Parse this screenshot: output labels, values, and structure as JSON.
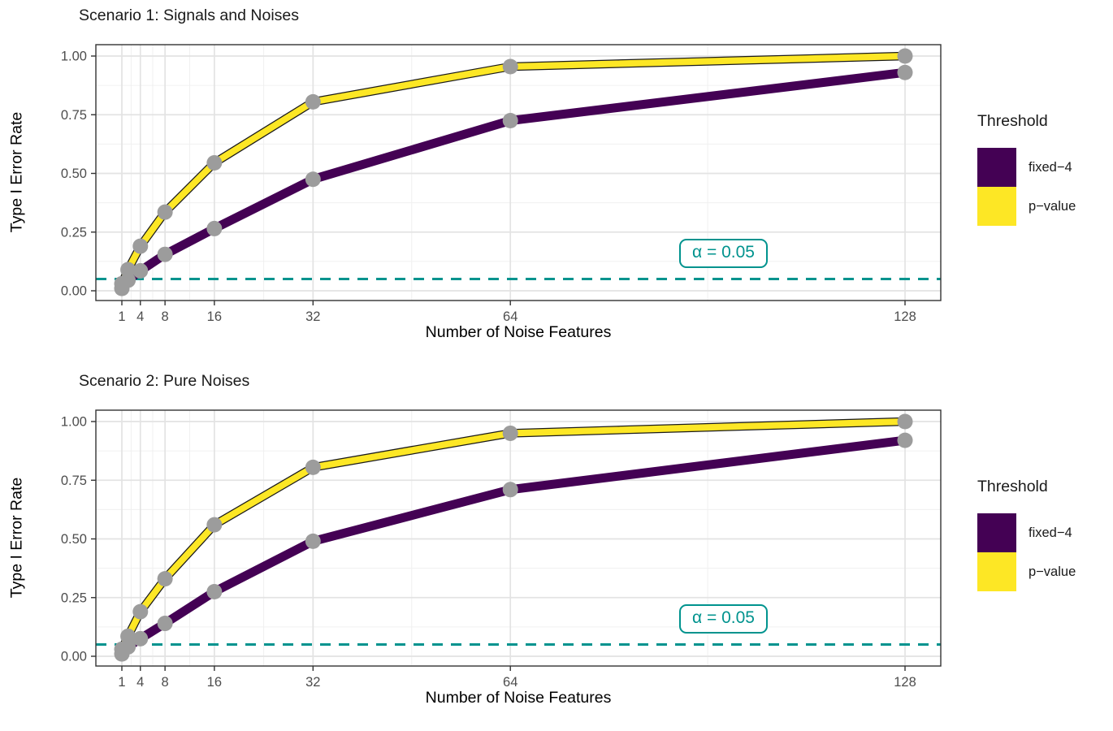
{
  "chart_data": [
    {
      "type": "line",
      "title": "Scenario 1: Signals and Noises",
      "xlabel": "Number of Noise Features",
      "ylabel": "Type I Error Rate",
      "x": [
        1,
        2,
        4,
        8,
        16,
        32,
        64,
        128
      ],
      "x_ticks": [
        1,
        4,
        8,
        16,
        32,
        64,
        128
      ],
      "y_ticks": [
        "0.00",
        "0.25",
        "0.50",
        "0.75",
        "1.00"
      ],
      "y_tick_values": [
        0,
        0.25,
        0.5,
        0.75,
        1
      ],
      "xlim": [
        1,
        128
      ],
      "ylim": [
        0,
        1
      ],
      "grid": "on",
      "point_color": "#9C9C9C",
      "series": [
        {
          "name": "fixed-4",
          "color": "#440154",
          "outlined": false,
          "values": [
            0.01,
            0.045,
            0.085,
            0.155,
            0.265,
            0.475,
            0.725,
            0.93
          ]
        },
        {
          "name": "p-value",
          "color": "#FDE725",
          "outlined": true,
          "values": [
            0.03,
            0.09,
            0.19,
            0.335,
            0.545,
            0.805,
            0.955,
            1.0
          ]
        }
      ],
      "reference_line": {
        "value": 0.05,
        "label": "α = 0.05",
        "color": "#00938E"
      },
      "legend": {
        "title": "Threshold",
        "position": "right",
        "items": [
          {
            "label": "fixed−4",
            "color": "#440154"
          },
          {
            "label": "p−value",
            "color": "#FDE725"
          }
        ]
      }
    },
    {
      "type": "line",
      "title": "Scenario 2: Pure Noises",
      "xlabel": "Number of Noise Features",
      "ylabel": "Type I Error Rate",
      "x": [
        1,
        2,
        4,
        8,
        16,
        32,
        64,
        128
      ],
      "x_ticks": [
        1,
        4,
        8,
        16,
        32,
        64,
        128
      ],
      "y_ticks": [
        "0.00",
        "0.25",
        "0.50",
        "0.75",
        "1.00"
      ],
      "y_tick_values": [
        0,
        0.25,
        0.5,
        0.75,
        1
      ],
      "xlim": [
        1,
        128
      ],
      "ylim": [
        0,
        1
      ],
      "grid": "on",
      "point_color": "#9C9C9C",
      "series": [
        {
          "name": "fixed-4",
          "color": "#440154",
          "outlined": false,
          "values": [
            0.01,
            0.04,
            0.075,
            0.14,
            0.275,
            0.49,
            0.71,
            0.92
          ]
        },
        {
          "name": "p-value",
          "color": "#FDE725",
          "outlined": true,
          "values": [
            0.03,
            0.085,
            0.19,
            0.33,
            0.56,
            0.805,
            0.95,
            1.0
          ]
        }
      ],
      "reference_line": {
        "value": 0.05,
        "label": "α = 0.05",
        "color": "#00938E"
      },
      "legend": {
        "title": "Threshold",
        "position": "right",
        "items": [
          {
            "label": "fixed−4",
            "color": "#440154"
          },
          {
            "label": "p−value",
            "color": "#FDE725"
          }
        ]
      }
    }
  ],
  "style": {
    "panel_border_color": "#333333",
    "major_grid_color": "#E3E3E3",
    "minor_grid_color": "#F0F0F0",
    "tick_color": "#333333",
    "axis_text_color": "#4d4d4d"
  }
}
